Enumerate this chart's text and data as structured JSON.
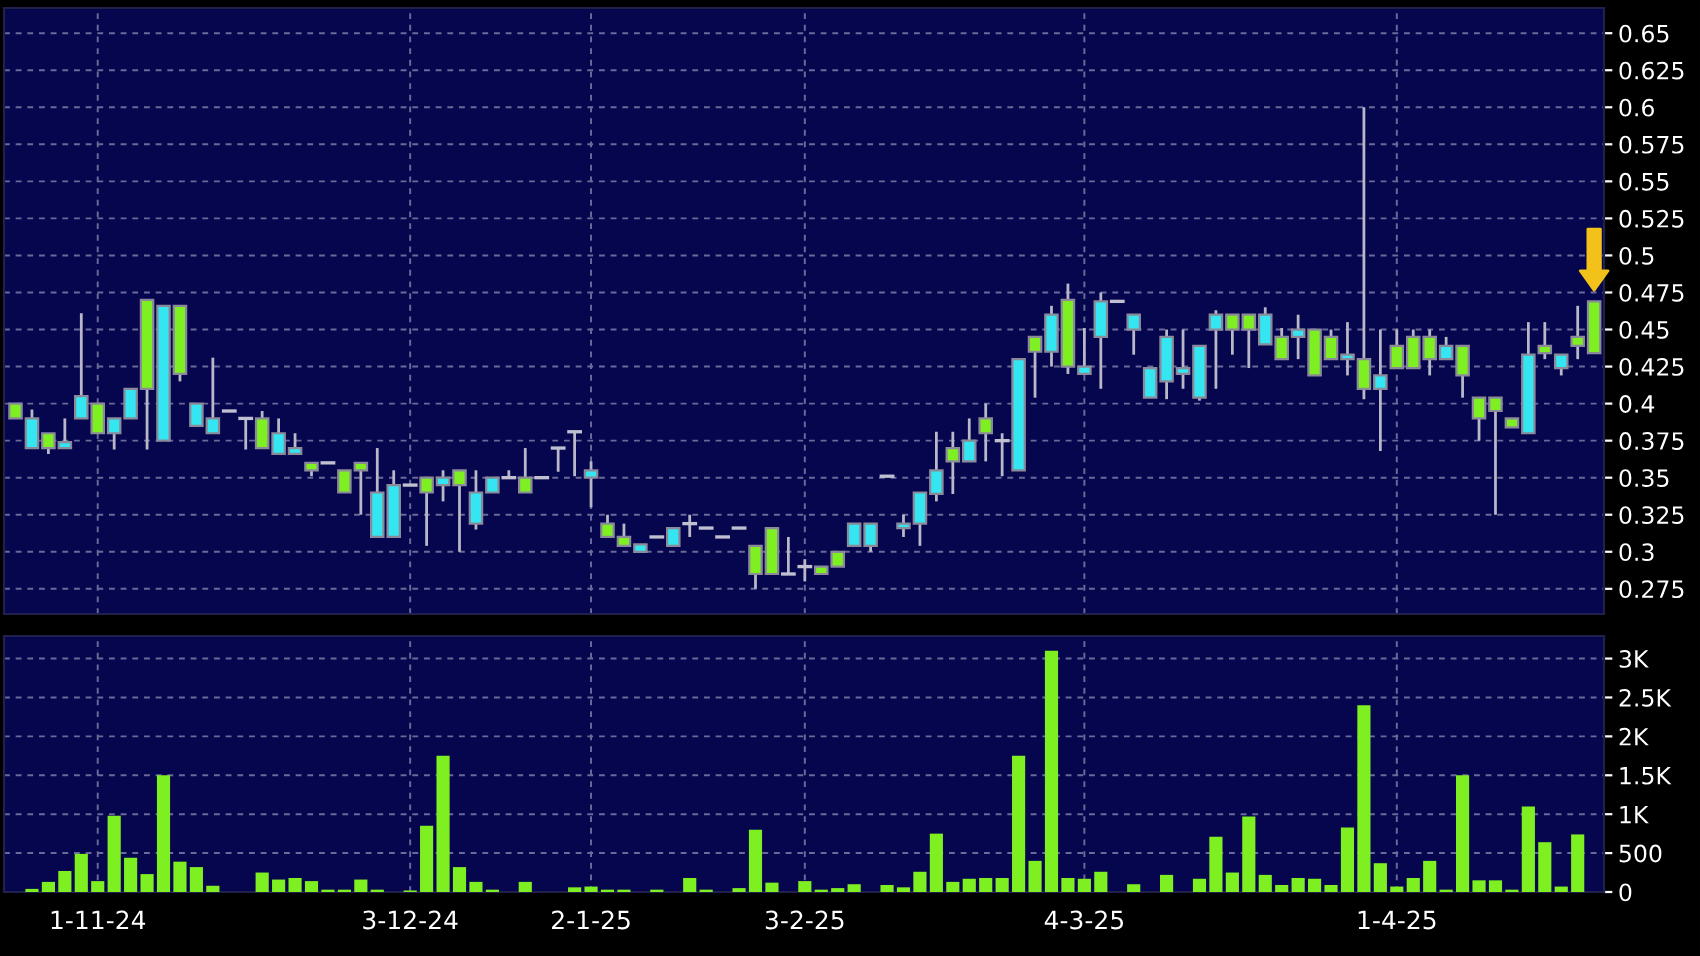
{
  "chart_data": [
    {
      "type": "candlestick",
      "categories": [
        null,
        null,
        null,
        null,
        null,
        null,
        null,
        null,
        null,
        null,
        null,
        null,
        null,
        null,
        null,
        null,
        null,
        null,
        null,
        null,
        null,
        null,
        null,
        null,
        null,
        null,
        null,
        null,
        null,
        null,
        null,
        null,
        null,
        null,
        null,
        null,
        null,
        null,
        null,
        null,
        null,
        null,
        null,
        null,
        null,
        null,
        null,
        null,
        null,
        null,
        null,
        null,
        null,
        null,
        null,
        null,
        null,
        null,
        null,
        null,
        null,
        null,
        null,
        null,
        null,
        null,
        null,
        null,
        null,
        null,
        null,
        null,
        null,
        null,
        null,
        null,
        null,
        null,
        null,
        null,
        null,
        null,
        null,
        null,
        null,
        null,
        null,
        null,
        null,
        null,
        null,
        null,
        null,
        null,
        null,
        null,
        null
      ],
      "ohlc": [
        [
          0.4,
          0.4,
          0.39,
          0.39
        ],
        [
          0.37,
          0.396,
          0.37,
          0.39
        ],
        [
          0.38,
          0.38,
          0.366,
          0.37
        ],
        [
          0.37,
          0.39,
          0.37,
          0.374
        ],
        [
          0.39,
          0.461,
          0.39,
          0.405
        ],
        [
          0.4,
          0.4,
          0.38,
          0.38
        ],
        [
          0.38,
          0.39,
          0.369,
          0.39
        ],
        [
          0.39,
          0.41,
          0.39,
          0.41
        ],
        [
          0.47,
          0.47,
          0.369,
          0.41
        ],
        [
          0.375,
          0.466,
          0.375,
          0.466
        ],
        [
          0.466,
          0.466,
          0.415,
          0.42
        ],
        [
          0.385,
          0.4,
          0.385,
          0.4
        ],
        [
          0.38,
          0.431,
          0.38,
          0.39
        ],
        [
          0.395,
          0.395,
          0.395,
          0.395
        ],
        [
          0.39,
          0.39,
          0.369,
          0.39
        ],
        [
          0.39,
          0.395,
          0.37,
          0.37
        ],
        [
          0.366,
          0.39,
          0.366,
          0.38
        ],
        [
          0.366,
          0.38,
          0.366,
          0.37
        ],
        [
          0.36,
          0.36,
          0.351,
          0.355
        ],
        [
          0.36,
          0.36,
          0.36,
          0.36
        ],
        [
          0.355,
          0.355,
          0.34,
          0.34
        ],
        [
          0.36,
          0.36,
          0.325,
          0.355
        ],
        [
          0.31,
          0.37,
          0.31,
          0.34
        ],
        [
          0.31,
          0.355,
          0.31,
          0.345
        ],
        [
          0.345,
          0.345,
          0.345,
          0.345
        ],
        [
          0.35,
          0.35,
          0.304,
          0.34
        ],
        [
          0.345,
          0.355,
          0.334,
          0.35
        ],
        [
          0.355,
          0.355,
          0.3,
          0.345
        ],
        [
          0.319,
          0.355,
          0.315,
          0.34
        ],
        [
          0.34,
          0.35,
          0.34,
          0.35
        ],
        [
          0.35,
          0.355,
          0.35,
          0.35
        ],
        [
          0.35,
          0.37,
          0.34,
          0.34
        ],
        [
          0.35,
          0.35,
          0.35,
          0.35
        ],
        [
          0.37,
          0.37,
          0.354,
          0.37
        ],
        [
          0.381,
          0.381,
          0.351,
          0.381
        ],
        [
          0.35,
          0.361,
          0.33,
          0.355
        ],
        [
          0.319,
          0.325,
          0.31,
          0.31
        ],
        [
          0.31,
          0.319,
          0.304,
          0.304
        ],
        [
          0.3,
          0.305,
          0.3,
          0.305
        ],
        [
          0.31,
          0.31,
          0.31,
          0.31
        ],
        [
          0.304,
          0.316,
          0.304,
          0.316
        ],
        [
          0.319,
          0.325,
          0.31,
          0.319
        ],
        [
          0.316,
          0.316,
          0.316,
          0.316
        ],
        [
          0.31,
          0.31,
          0.31,
          0.31
        ],
        [
          0.316,
          0.316,
          0.316,
          0.316
        ],
        [
          0.304,
          0.304,
          0.275,
          0.285
        ],
        [
          0.316,
          0.316,
          0.285,
          0.285
        ],
        [
          0.285,
          0.31,
          0.285,
          0.285
        ],
        [
          0.29,
          0.295,
          0.28,
          0.29
        ],
        [
          0.29,
          0.29,
          0.285,
          0.285
        ],
        [
          0.3,
          0.3,
          0.29,
          0.29
        ],
        [
          0.304,
          0.319,
          0.304,
          0.319
        ],
        [
          0.304,
          0.319,
          0.3,
          0.319
        ],
        [
          0.351,
          0.351,
          0.351,
          0.351
        ],
        [
          0.316,
          0.325,
          0.31,
          0.319
        ],
        [
          0.319,
          0.34,
          0.304,
          0.34
        ],
        [
          0.339,
          0.381,
          0.334,
          0.355
        ],
        [
          0.37,
          0.381,
          0.339,
          0.361
        ],
        [
          0.361,
          0.39,
          0.361,
          0.375
        ],
        [
          0.39,
          0.4,
          0.361,
          0.38
        ],
        [
          0.375,
          0.38,
          0.351,
          0.375
        ],
        [
          0.355,
          0.43,
          0.355,
          0.43
        ],
        [
          0.445,
          0.445,
          0.404,
          0.435
        ],
        [
          0.435,
          0.466,
          0.425,
          0.46
        ],
        [
          0.47,
          0.481,
          0.42,
          0.425
        ],
        [
          0.42,
          0.451,
          0.42,
          0.425
        ],
        [
          0.445,
          0.475,
          0.41,
          0.469
        ],
        [
          0.469,
          0.469,
          0.469,
          0.469
        ],
        [
          0.45,
          0.46,
          0.433,
          0.46
        ],
        [
          0.404,
          0.424,
          0.404,
          0.424
        ],
        [
          0.415,
          0.45,
          0.403,
          0.445
        ],
        [
          0.42,
          0.45,
          0.41,
          0.424
        ],
        [
          0.404,
          0.439,
          0.402,
          0.439
        ],
        [
          0.45,
          0.463,
          0.41,
          0.46
        ],
        [
          0.46,
          0.46,
          0.433,
          0.45
        ],
        [
          0.46,
          0.46,
          0.424,
          0.45
        ],
        [
          0.44,
          0.465,
          0.44,
          0.46
        ],
        [
          0.445,
          0.451,
          0.43,
          0.43
        ],
        [
          0.445,
          0.46,
          0.43,
          0.45
        ],
        [
          0.45,
          0.45,
          0.419,
          0.419
        ],
        [
          0.445,
          0.45,
          0.43,
          0.43
        ],
        [
          0.43,
          0.455,
          0.419,
          0.433
        ],
        [
          0.43,
          0.6,
          0.403,
          0.41
        ],
        [
          0.41,
          0.45,
          0.368,
          0.419
        ],
        [
          0.439,
          0.45,
          0.424,
          0.424
        ],
        [
          0.445,
          0.45,
          0.424,
          0.424
        ],
        [
          0.445,
          0.45,
          0.419,
          0.43
        ],
        [
          0.43,
          0.445,
          0.43,
          0.439
        ],
        [
          0.439,
          0.439,
          0.404,
          0.419
        ],
        [
          0.404,
          0.404,
          0.375,
          0.39
        ],
        [
          0.404,
          0.404,
          0.325,
          0.395
        ],
        [
          0.39,
          0.39,
          0.384,
          0.384
        ],
        [
          0.38,
          0.455,
          0.38,
          0.433
        ],
        [
          0.439,
          0.455,
          0.43,
          0.434
        ],
        [
          0.424,
          0.433,
          0.419,
          0.433
        ],
        [
          0.445,
          0.466,
          0.43,
          0.439
        ],
        [
          0.469,
          0.469,
          0.434,
          0.434
        ]
      ],
      "colors": [
        "#7ef022",
        "#33e6f2",
        "#7ef022",
        "#33e6f2",
        "#33e6f2",
        "#7ef022",
        "#33e6f2",
        "#33e6f2",
        "#7ef022",
        "#33e6f2",
        "#7ef022",
        "#33e6f2",
        "#33e6f2",
        "#c0c0d0",
        "#c0c0d0",
        "#7ef022",
        "#33e6f2",
        "#33e6f2",
        "#7ef022",
        "#c0c0d0",
        "#7ef022",
        "#7ef022",
        "#33e6f2",
        "#33e6f2",
        "#c0c0d0",
        "#7ef022",
        "#33e6f2",
        "#7ef022",
        "#33e6f2",
        "#33e6f2",
        "#c0c0d0",
        "#7ef022",
        "#c0c0d0",
        "#c0c0d0",
        "#c0c0d0",
        "#33e6f2",
        "#7ef022",
        "#7ef022",
        "#33e6f2",
        "#c0c0d0",
        "#33e6f2",
        "#c0c0d0",
        "#c0c0d0",
        "#c0c0d0",
        "#c0c0d0",
        "#7ef022",
        "#7ef022",
        "#c0c0d0",
        "#c0c0d0",
        "#7ef022",
        "#7ef022",
        "#33e6f2",
        "#33e6f2",
        "#c0c0d0",
        "#33e6f2",
        "#33e6f2",
        "#33e6f2",
        "#7ef022",
        "#33e6f2",
        "#7ef022",
        "#c0c0d0",
        "#33e6f2",
        "#7ef022",
        "#33e6f2",
        "#7ef022",
        "#33e6f2",
        "#33e6f2",
        "#c0c0d0",
        "#33e6f2",
        "#33e6f2",
        "#33e6f2",
        "#33e6f2",
        "#33e6f2",
        "#33e6f2",
        "#7ef022",
        "#7ef022",
        "#33e6f2",
        "#7ef022",
        "#33e6f2",
        "#7ef022",
        "#7ef022",
        "#33e6f2",
        "#7ef022",
        "#33e6f2",
        "#7ef022",
        "#7ef022",
        "#7ef022",
        "#33e6f2",
        "#7ef022",
        "#7ef022",
        "#7ef022",
        "#7ef022",
        "#33e6f2",
        "#7ef022",
        "#33e6f2",
        "#7ef022",
        "#7ef022"
      ],
      "ylim": [
        0.258,
        0.667
      ],
      "yticks": [
        0.275,
        0.3,
        0.325,
        0.35,
        0.375,
        0.4,
        0.425,
        0.45,
        0.475,
        0.5,
        0.525,
        0.55,
        0.575,
        0.6,
        0.625,
        0.65
      ],
      "grid": true,
      "tick_labels": "y"
    },
    {
      "type": "bar",
      "categories": [
        null,
        null,
        null,
        null,
        null,
        "1-11-24",
        null,
        null,
        null,
        null,
        null,
        null,
        null,
        null,
        null,
        null,
        null,
        null,
        null,
        null,
        null,
        null,
        null,
        null,
        "3-12-24",
        null,
        null,
        null,
        null,
        null,
        null,
        null,
        null,
        null,
        null,
        "2-1-25",
        null,
        null,
        null,
        null,
        null,
        null,
        null,
        null,
        null,
        null,
        null,
        null,
        "3-2-25",
        null,
        null,
        null,
        null,
        null,
        null,
        null,
        null,
        null,
        null,
        null,
        null,
        null,
        null,
        null,
        null,
        "4-3-25",
        null,
        null,
        null,
        null,
        null,
        null,
        null,
        null,
        null,
        null,
        null,
        null,
        null,
        null,
        null,
        null,
        null,
        null,
        "1-4-25",
        null,
        null,
        null,
        null,
        null,
        null,
        null,
        null,
        null,
        null,
        null,
        null
      ],
      "values": [
        0,
        40,
        130,
        270,
        490,
        140,
        980,
        440,
        230,
        1500,
        390,
        320,
        80,
        0,
        0,
        250,
        160,
        180,
        140,
        30,
        30,
        160,
        30,
        0,
        20,
        850,
        1750,
        320,
        130,
        30,
        0,
        130,
        0,
        0,
        60,
        70,
        30,
        30,
        0,
        30,
        0,
        180,
        30,
        0,
        50,
        800,
        120,
        0,
        140,
        30,
        50,
        100,
        0,
        90,
        60,
        260,
        750,
        130,
        170,
        180,
        180,
        1750,
        400,
        3100,
        180,
        170,
        260,
        0,
        100,
        0,
        220,
        0,
        170,
        710,
        250,
        970,
        220,
        90,
        180,
        170,
        90,
        830,
        2400,
        370,
        70,
        180,
        400,
        30,
        1500,
        150,
        150,
        30,
        1100,
        640,
        70,
        740,
        0
      ],
      "color": "#7ef022",
      "ylim": [
        0,
        3290
      ],
      "yticks": [
        0,
        500,
        {
          "value": 1000,
          "label": "1K"
        },
        {
          "value": 1500,
          "label": "1.5K"
        },
        {
          "value": 2000,
          "label": "2K"
        },
        {
          "value": 2500,
          "label": "2.5K"
        },
        {
          "value": 3000,
          "label": "3K"
        }
      ],
      "grid": true
    }
  ]
}
